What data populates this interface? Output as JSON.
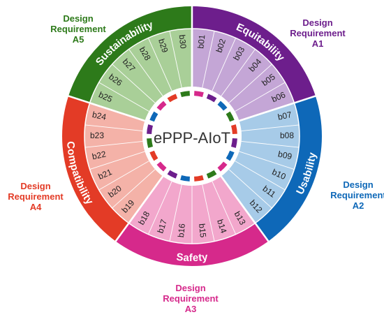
{
  "center_title": "ePPP-AIoT",
  "colors": {
    "dark_green": "#2d7a1a",
    "light_green": "#a9cf98",
    "dark_purple": "#6d1e8c",
    "light_purple": "#c4a6d6",
    "dark_blue": "#0e68b8",
    "light_blue": "#a7cbe8",
    "dark_magenta": "#d6298b",
    "light_pink": "#f2a7cc",
    "dark_red": "#e33b26",
    "light_salmon": "#f4b2a8"
  },
  "sectors": [
    {
      "id": "A1",
      "name": "Equitability",
      "label_prefix": "Design",
      "label_main": "Requirement",
      "label_code": "A1",
      "items": [
        "b01",
        "b02",
        "b03",
        "b04",
        "b05",
        "b06"
      ]
    },
    {
      "id": "A2",
      "name": "Usability",
      "label_prefix": "Design",
      "label_main": "Requirement",
      "label_code": "A2",
      "items": [
        "b07",
        "b08",
        "b09",
        "b10",
        "b11",
        "b12"
      ]
    },
    {
      "id": "A3",
      "name": "Safety",
      "label_prefix": "Design",
      "label_main": "Requirement",
      "label_code": "A3",
      "items": [
        "b13",
        "b14",
        "b15",
        "b16",
        "b17",
        "b18"
      ]
    },
    {
      "id": "A4",
      "name": "Compatibility",
      "label_prefix": "Design",
      "label_main": "Requirement",
      "label_code": "A4",
      "items": [
        "b19",
        "b20",
        "b21",
        "b22",
        "b23",
        "b24"
      ]
    },
    {
      "id": "A5",
      "name": "Sustainability",
      "label_prefix": "Design",
      "label_main": "Requirement",
      "label_code": "A5",
      "items": [
        "b25",
        "b26",
        "b27",
        "b28",
        "b29",
        "b30"
      ]
    }
  ]
}
